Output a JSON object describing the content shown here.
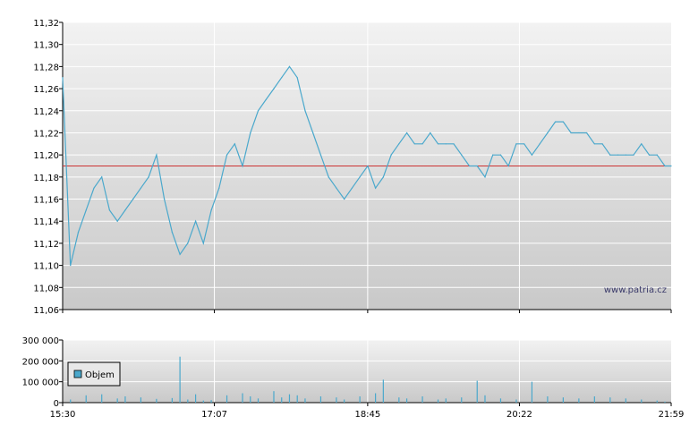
{
  "chart_data": [
    {
      "type": "line",
      "title": "",
      "xlabel": "",
      "ylabel": "",
      "ylim": [
        11.06,
        11.32
      ],
      "y_ticks": [
        "11,06",
        "11,08",
        "11,10",
        "11,12",
        "11,14",
        "11,16",
        "11,18",
        "11,20",
        "11,22",
        "11,24",
        "11,26",
        "11,28",
        "11,30",
        "11,32"
      ],
      "reference_line": 11.19,
      "grid": true,
      "watermark": "www.patria.cz",
      "colors": {
        "line": "#4aa8cc",
        "reference": "#cc3333",
        "grid": "#ffffff",
        "bg_top": "#f2f2f2",
        "bg_bottom": "#c9c9c9"
      },
      "series": [
        {
          "x": [
            "15:30",
            "15:35",
            "15:40",
            "15:45",
            "15:50",
            "15:55",
            "16:00",
            "16:05",
            "16:10",
            "16:15",
            "16:20",
            "16:25",
            "16:30",
            "16:35",
            "16:40",
            "16:45",
            "16:50",
            "16:55",
            "17:00",
            "17:05",
            "17:10",
            "17:15",
            "17:20",
            "17:25",
            "17:30",
            "17:35",
            "17:40",
            "17:45",
            "17:50",
            "17:55",
            "18:00",
            "18:05",
            "18:10",
            "18:15",
            "18:20",
            "18:25",
            "18:30",
            "18:35",
            "18:40",
            "18:45",
            "18:50",
            "18:55",
            "19:00",
            "19:05",
            "19:10",
            "19:15",
            "19:20",
            "19:25",
            "19:30",
            "19:35",
            "19:40",
            "19:45",
            "19:50",
            "19:55",
            "20:00",
            "20:05",
            "20:10",
            "20:15",
            "20:20",
            "20:25",
            "20:30",
            "20:35",
            "20:40",
            "20:45",
            "20:50",
            "20:55",
            "21:00",
            "21:05",
            "21:10",
            "21:15",
            "21:20",
            "21:25",
            "21:30",
            "21:35",
            "21:40",
            "21:45",
            "21:50",
            "21:55",
            "21:59"
          ],
          "values": [
            11.27,
            11.1,
            11.13,
            11.15,
            11.17,
            11.18,
            11.15,
            11.14,
            11.15,
            11.16,
            11.17,
            11.18,
            11.2,
            11.16,
            11.13,
            11.11,
            11.12,
            11.14,
            11.12,
            11.15,
            11.17,
            11.2,
            11.21,
            11.19,
            11.22,
            11.24,
            11.25,
            11.26,
            11.27,
            11.28,
            11.27,
            11.24,
            11.22,
            11.2,
            11.18,
            11.17,
            11.16,
            11.17,
            11.18,
            11.19,
            11.17,
            11.18,
            11.2,
            11.21,
            11.22,
            11.21,
            11.21,
            11.22,
            11.21,
            11.21,
            11.21,
            11.2,
            11.19,
            11.19,
            11.18,
            11.2,
            11.2,
            11.19,
            11.21,
            11.21,
            11.2,
            11.21,
            11.22,
            11.23,
            11.23,
            11.22,
            11.22,
            11.22,
            11.21,
            11.21,
            11.2,
            11.2,
            11.2,
            11.2,
            11.21,
            11.2,
            11.2,
            11.19,
            11.19
          ]
        }
      ]
    },
    {
      "type": "bar",
      "title": "",
      "xlabel": "",
      "ylabel": "",
      "ylim": [
        0,
        300000
      ],
      "y_ticks": [
        "0",
        "100 000",
        "200 000",
        "300 000"
      ],
      "x_ticks": [
        "15:30",
        "17:07",
        "18:45",
        "20:22",
        "21:59"
      ],
      "legend": {
        "label": "Objem",
        "position": "left"
      },
      "colors": {
        "bar": "#4aa8cc",
        "legend_swatch": "#4aa8cc"
      },
      "series": [
        {
          "name": "Objem",
          "x": [
            "15:35",
            "15:45",
            "15:55",
            "16:05",
            "16:10",
            "16:20",
            "16:30",
            "16:40",
            "16:45",
            "16:50",
            "16:55",
            "17:00",
            "17:05",
            "17:15",
            "17:25",
            "17:30",
            "17:35",
            "17:45",
            "17:50",
            "17:55",
            "18:00",
            "18:05",
            "18:15",
            "18:25",
            "18:30",
            "18:40",
            "18:50",
            "18:55",
            "19:05",
            "19:10",
            "19:20",
            "19:30",
            "19:35",
            "19:45",
            "19:55",
            "20:00",
            "20:10",
            "20:20",
            "20:30",
            "20:40",
            "20:50",
            "21:00",
            "21:10",
            "21:20",
            "21:30",
            "21:40",
            "21:50",
            "21:55"
          ],
          "values": [
            15000,
            35000,
            40000,
            20000,
            30000,
            25000,
            18000,
            22000,
            220000,
            15000,
            40000,
            10000,
            12000,
            35000,
            45000,
            30000,
            20000,
            55000,
            25000,
            40000,
            35000,
            20000,
            30000,
            25000,
            15000,
            30000,
            45000,
            110000,
            25000,
            20000,
            30000,
            15000,
            20000,
            25000,
            105000,
            35000,
            20000,
            15000,
            100000,
            30000,
            25000,
            20000,
            30000,
            25000,
            20000,
            15000,
            10000,
            5000
          ]
        }
      ]
    }
  ]
}
